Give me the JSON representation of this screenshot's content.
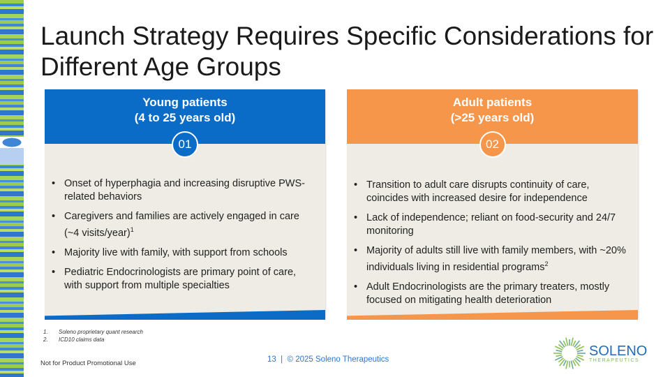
{
  "title": "Launch Strategy Requires Specific Considerations for Different Age Groups",
  "colors": {
    "young": "#0a6cc7",
    "adult": "#f5964a",
    "panel_bg": "#eeece4",
    "footer_text": "#2f77cc"
  },
  "panels": [
    {
      "heading_line1": "Young patients",
      "heading_line2": "(4 to 25 years old)",
      "number": "01",
      "bullets": [
        {
          "text": "Onset of hyperphagia and increasing disruptive PWS-related behaviors",
          "sup": ""
        },
        {
          "text": "Caregivers and families are actively engaged in care (~4 visits/year)",
          "sup": "1"
        },
        {
          "text": "Majority live with family, with support from schools",
          "sup": ""
        },
        {
          "text": "Pediatric Endocrinologists are primary point of care, with support from multiple specialties",
          "sup": ""
        }
      ]
    },
    {
      "heading_line1": "Adult patients",
      "heading_line2": "(>25 years old)",
      "number": "02",
      "bullets": [
        {
          "text": "Transition to adult care disrupts continuity of care, coincides with increased desire for independence",
          "sup": ""
        },
        {
          "text": "Lack of independence; reliant on food-security and 24/7 monitoring",
          "sup": ""
        },
        {
          "text": "Majority of adults still live with family members, with ~20% individuals living in residential programs",
          "sup": "2"
        },
        {
          "text": "Adult Endocrinologists are the primary treaters, mostly focused on mitigating health deterioration",
          "sup": ""
        }
      ]
    }
  ],
  "footnotes": [
    {
      "num": "1.",
      "text": "Soleno proprietary quant research"
    },
    {
      "num": "2.",
      "text": "ICD10 claims data"
    }
  ],
  "disclaimer": "Not for Product Promotional Use",
  "footer": "13  |  © 2025 Soleno Therapeutics",
  "logo": {
    "name": "SOLENO",
    "tagline": "THERAPEUTICS"
  }
}
